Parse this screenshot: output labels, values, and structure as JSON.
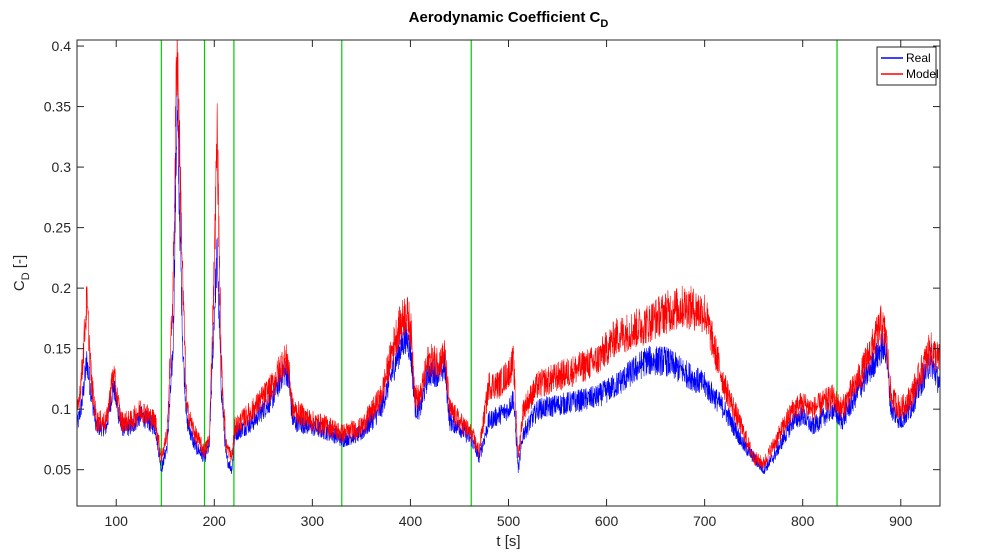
{
  "chart_data": {
    "type": "line",
    "title": "Aerodynamic Coefficient C",
    "title_sub": "D",
    "xlabel": "t [s]",
    "ylabel": "C",
    "ylabel_sub": "D",
    "ylabel_suffix": " [-]",
    "xlim": [
      60,
      940
    ],
    "ylim": [
      0.02,
      0.405
    ],
    "xticks": [
      100,
      200,
      300,
      400,
      500,
      600,
      700,
      800,
      900
    ],
    "xtick_labels": [
      "100",
      "200",
      "300",
      "400",
      "500",
      "600",
      "700",
      "800",
      "900"
    ],
    "yticks": [
      0.05,
      0.1,
      0.15,
      0.2,
      0.25,
      0.3,
      0.35,
      0.4
    ],
    "ytick_labels": [
      "0.05",
      "0.1",
      "0.15",
      "0.2",
      "0.25",
      "0.3",
      "0.35",
      "0.4"
    ],
    "grid": false,
    "legend_position": "top-right",
    "vertical_lines": {
      "color": "#00cc00",
      "x": [
        146,
        190,
        220,
        330,
        462,
        835
      ]
    },
    "series": [
      {
        "name": "Real",
        "color": "#0000ff",
        "x": [
          60,
          65,
          70,
          75,
          80,
          90,
          97,
          105,
          115,
          125,
          140,
          146,
          152,
          158,
          162,
          165,
          168,
          172,
          180,
          190,
          195,
          200,
          203,
          207,
          212,
          218,
          221,
          240,
          260,
          270,
          275,
          280,
          300,
          320,
          330,
          350,
          370,
          385,
          395,
          400,
          405,
          410,
          418,
          430,
          435,
          440,
          450,
          462,
          470,
          480,
          490,
          500,
          505,
          510,
          515,
          530,
          560,
          590,
          610,
          640,
          660,
          680,
          700,
          720,
          740,
          750,
          760,
          770,
          790,
          800,
          810,
          830,
          840,
          860,
          880,
          885,
          890,
          900,
          910,
          920,
          930,
          940
        ],
        "y": [
          0.085,
          0.105,
          0.14,
          0.11,
          0.085,
          0.085,
          0.12,
          0.085,
          0.085,
          0.095,
          0.085,
          0.05,
          0.07,
          0.15,
          0.35,
          0.25,
          0.15,
          0.09,
          0.07,
          0.06,
          0.07,
          0.18,
          0.23,
          0.12,
          0.06,
          0.05,
          0.08,
          0.09,
          0.11,
          0.13,
          0.13,
          0.09,
          0.085,
          0.08,
          0.075,
          0.08,
          0.1,
          0.14,
          0.16,
          0.15,
          0.1,
          0.1,
          0.13,
          0.13,
          0.135,
          0.09,
          0.085,
          0.075,
          0.06,
          0.09,
          0.095,
          0.1,
          0.11,
          0.05,
          0.08,
          0.1,
          0.105,
          0.11,
          0.12,
          0.14,
          0.14,
          0.13,
          0.12,
          0.1,
          0.07,
          0.06,
          0.05,
          0.06,
          0.09,
          0.095,
          0.085,
          0.1,
          0.09,
          0.12,
          0.15,
          0.15,
          0.1,
          0.09,
          0.1,
          0.12,
          0.14,
          0.12
        ]
      },
      {
        "name": "Model",
        "color": "#ff0000",
        "x": [
          60,
          65,
          70,
          75,
          80,
          90,
          97,
          105,
          115,
          125,
          140,
          146,
          152,
          158,
          162,
          165,
          168,
          172,
          180,
          190,
          195,
          200,
          203,
          207,
          212,
          218,
          221,
          240,
          260,
          270,
          275,
          280,
          300,
          320,
          330,
          350,
          370,
          385,
          395,
          400,
          405,
          410,
          418,
          430,
          435,
          440,
          450,
          462,
          470,
          480,
          490,
          500,
          505,
          510,
          515,
          530,
          560,
          590,
          610,
          640,
          660,
          680,
          700,
          720,
          740,
          750,
          760,
          770,
          790,
          800,
          810,
          830,
          840,
          860,
          880,
          885,
          890,
          900,
          910,
          920,
          930,
          940
        ],
        "y": [
          0.095,
          0.13,
          0.19,
          0.12,
          0.09,
          0.09,
          0.13,
          0.09,
          0.09,
          0.1,
          0.09,
          0.06,
          0.08,
          0.2,
          0.41,
          0.3,
          0.2,
          0.1,
          0.08,
          0.065,
          0.075,
          0.22,
          0.33,
          0.14,
          0.07,
          0.06,
          0.085,
          0.1,
          0.12,
          0.14,
          0.14,
          0.1,
          0.09,
          0.085,
          0.08,
          0.085,
          0.11,
          0.16,
          0.18,
          0.17,
          0.11,
          0.11,
          0.14,
          0.14,
          0.145,
          0.1,
          0.09,
          0.08,
          0.065,
          0.12,
          0.12,
          0.13,
          0.14,
          0.06,
          0.1,
          0.12,
          0.13,
          0.14,
          0.16,
          0.17,
          0.18,
          0.185,
          0.18,
          0.12,
          0.08,
          0.06,
          0.055,
          0.07,
          0.1,
          0.105,
          0.1,
          0.11,
          0.1,
          0.13,
          0.17,
          0.16,
          0.11,
          0.1,
          0.11,
          0.13,
          0.15,
          0.14
        ]
      }
    ]
  }
}
